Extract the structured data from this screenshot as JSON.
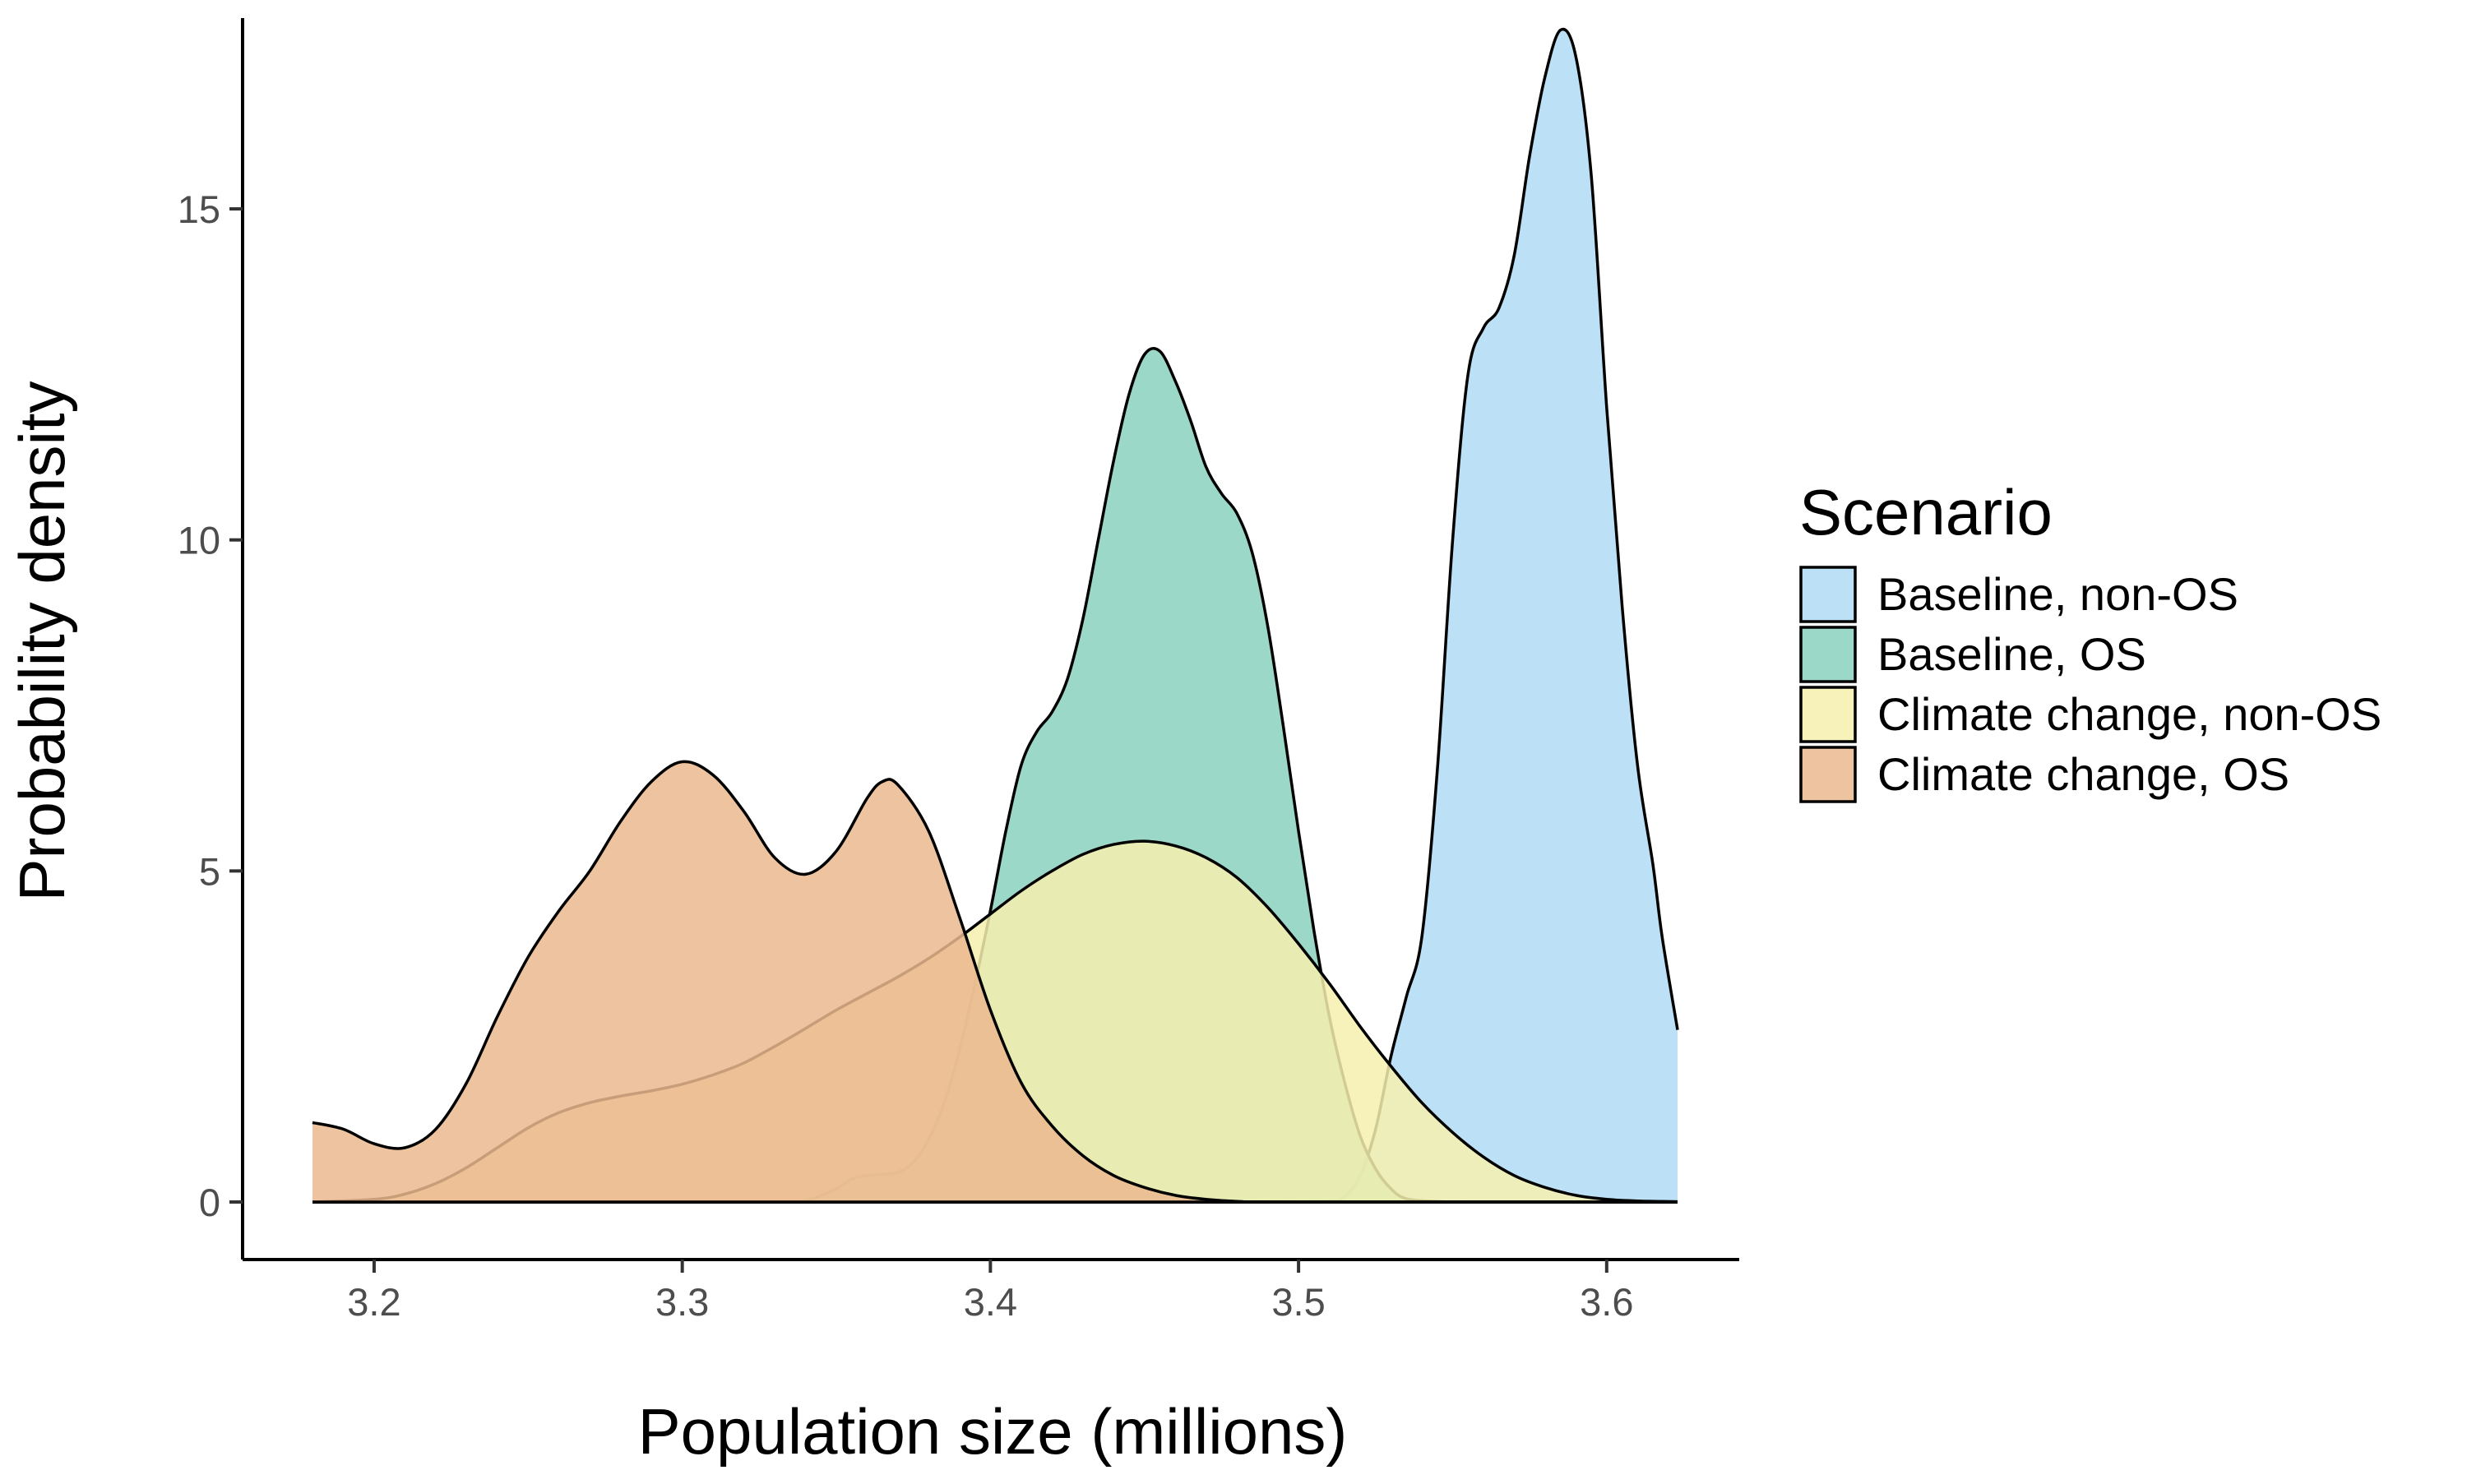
{
  "chart_data": {
    "type": "area",
    "subtype": "density",
    "title": "",
    "xlabel": "Population size (millions)",
    "ylabel": "Probability density",
    "xlim": [
      3.18,
      3.623
    ],
    "ylim": [
      -0.9,
      18.6
    ],
    "x_ticks": [
      3.2,
      3.3,
      3.4,
      3.5,
      3.6
    ],
    "x_tick_labels": [
      "3.2",
      "3.3",
      "3.4",
      "3.5",
      "3.6"
    ],
    "y_ticks": [
      0,
      5,
      10,
      15
    ],
    "y_tick_labels": [
      "0",
      "5",
      "10",
      "15"
    ],
    "grid": false,
    "legend": {
      "title": "Scenario",
      "position": "right"
    },
    "series": [
      {
        "name": "Baseline, non-OS",
        "color": "#b3dcf4",
        "opacity": 0.88,
        "points": [
          [
            3.18,
            0
          ],
          [
            3.45,
            0
          ],
          [
            3.5,
            0.005
          ],
          [
            3.51,
            0.02
          ],
          [
            3.515,
            0.08
          ],
          [
            3.52,
            0.4
          ],
          [
            3.525,
            1.1
          ],
          [
            3.53,
            2.2
          ],
          [
            3.535,
            3.1
          ],
          [
            3.54,
            4.0
          ],
          [
            3.545,
            6.5
          ],
          [
            3.55,
            10.0
          ],
          [
            3.555,
            12.5
          ],
          [
            3.56,
            13.2
          ],
          [
            3.565,
            13.5
          ],
          [
            3.57,
            14.3
          ],
          [
            3.575,
            15.8
          ],
          [
            3.58,
            17.0
          ],
          [
            3.585,
            17.7
          ],
          [
            3.59,
            17.3
          ],
          [
            3.595,
            15.5
          ],
          [
            3.6,
            12.0
          ],
          [
            3.605,
            9.0
          ],
          [
            3.61,
            6.6
          ],
          [
            3.615,
            5.1
          ],
          [
            3.618,
            4.0
          ],
          [
            3.623,
            2.6
          ]
        ]
      },
      {
        "name": "Baseline, OS",
        "color": "#8dd3c0",
        "opacity": 0.88,
        "points": [
          [
            3.18,
            0
          ],
          [
            3.33,
            0
          ],
          [
            3.34,
            0.02
          ],
          [
            3.35,
            0.2
          ],
          [
            3.355,
            0.35
          ],
          [
            3.36,
            0.4
          ],
          [
            3.365,
            0.42
          ],
          [
            3.37,
            0.45
          ],
          [
            3.375,
            0.6
          ],
          [
            3.38,
            0.95
          ],
          [
            3.385,
            1.5
          ],
          [
            3.39,
            2.3
          ],
          [
            3.395,
            3.3
          ],
          [
            3.4,
            4.4
          ],
          [
            3.405,
            5.6
          ],
          [
            3.41,
            6.6
          ],
          [
            3.415,
            7.1
          ],
          [
            3.42,
            7.4
          ],
          [
            3.425,
            7.9
          ],
          [
            3.43,
            8.8
          ],
          [
            3.435,
            10.0
          ],
          [
            3.44,
            11.2
          ],
          [
            3.445,
            12.2
          ],
          [
            3.45,
            12.8
          ],
          [
            3.455,
            12.85
          ],
          [
            3.46,
            12.4
          ],
          [
            3.465,
            11.8
          ],
          [
            3.47,
            11.1
          ],
          [
            3.475,
            10.7
          ],
          [
            3.48,
            10.4
          ],
          [
            3.485,
            9.8
          ],
          [
            3.49,
            8.7
          ],
          [
            3.495,
            7.2
          ],
          [
            3.5,
            5.6
          ],
          [
            3.505,
            4.1
          ],
          [
            3.51,
            2.8
          ],
          [
            3.515,
            1.8
          ],
          [
            3.52,
            1.0
          ],
          [
            3.525,
            0.5
          ],
          [
            3.53,
            0.2
          ],
          [
            3.535,
            0.05
          ],
          [
            3.545,
            0.01
          ],
          [
            3.56,
            0
          ],
          [
            3.623,
            0
          ]
        ]
      },
      {
        "name": "Climate change, non-OS",
        "color": "#f6f0ae",
        "opacity": 0.85,
        "points": [
          [
            3.18,
            0
          ],
          [
            3.2,
            0.04
          ],
          [
            3.21,
            0.12
          ],
          [
            3.22,
            0.28
          ],
          [
            3.23,
            0.52
          ],
          [
            3.24,
            0.82
          ],
          [
            3.25,
            1.12
          ],
          [
            3.26,
            1.35
          ],
          [
            3.27,
            1.5
          ],
          [
            3.28,
            1.6
          ],
          [
            3.29,
            1.68
          ],
          [
            3.3,
            1.78
          ],
          [
            3.31,
            1.92
          ],
          [
            3.32,
            2.1
          ],
          [
            3.33,
            2.35
          ],
          [
            3.34,
            2.62
          ],
          [
            3.35,
            2.9
          ],
          [
            3.36,
            3.15
          ],
          [
            3.37,
            3.4
          ],
          [
            3.38,
            3.68
          ],
          [
            3.39,
            4.0
          ],
          [
            3.4,
            4.35
          ],
          [
            3.41,
            4.7
          ],
          [
            3.42,
            5.0
          ],
          [
            3.43,
            5.25
          ],
          [
            3.44,
            5.4
          ],
          [
            3.45,
            5.45
          ],
          [
            3.46,
            5.38
          ],
          [
            3.47,
            5.2
          ],
          [
            3.48,
            4.9
          ],
          [
            3.49,
            4.45
          ],
          [
            3.5,
            3.9
          ],
          [
            3.51,
            3.3
          ],
          [
            3.52,
            2.65
          ],
          [
            3.53,
            2.05
          ],
          [
            3.54,
            1.5
          ],
          [
            3.55,
            1.05
          ],
          [
            3.56,
            0.68
          ],
          [
            3.57,
            0.4
          ],
          [
            3.58,
            0.22
          ],
          [
            3.59,
            0.1
          ],
          [
            3.6,
            0.04
          ],
          [
            3.61,
            0.015
          ],
          [
            3.623,
            0.005
          ]
        ]
      },
      {
        "name": "Climate change, OS",
        "color": "#ebb88e",
        "opacity": 0.85,
        "points": [
          [
            3.18,
            1.2
          ],
          [
            3.19,
            1.1
          ],
          [
            3.2,
            0.88
          ],
          [
            3.21,
            0.82
          ],
          [
            3.22,
            1.1
          ],
          [
            3.23,
            1.8
          ],
          [
            3.24,
            2.8
          ],
          [
            3.25,
            3.7
          ],
          [
            3.26,
            4.4
          ],
          [
            3.27,
            5.0
          ],
          [
            3.28,
            5.75
          ],
          [
            3.29,
            6.35
          ],
          [
            3.3,
            6.65
          ],
          [
            3.31,
            6.45
          ],
          [
            3.32,
            5.9
          ],
          [
            3.33,
            5.2
          ],
          [
            3.34,
            4.95
          ],
          [
            3.35,
            5.3
          ],
          [
            3.36,
            6.1
          ],
          [
            3.365,
            6.35
          ],
          [
            3.37,
            6.3
          ],
          [
            3.38,
            5.6
          ],
          [
            3.39,
            4.3
          ],
          [
            3.4,
            2.9
          ],
          [
            3.41,
            1.8
          ],
          [
            3.42,
            1.15
          ],
          [
            3.43,
            0.7
          ],
          [
            3.44,
            0.4
          ],
          [
            3.45,
            0.22
          ],
          [
            3.46,
            0.1
          ],
          [
            3.47,
            0.04
          ],
          [
            3.48,
            0.01
          ],
          [
            3.5,
            0
          ],
          [
            3.623,
            0
          ]
        ]
      }
    ]
  }
}
